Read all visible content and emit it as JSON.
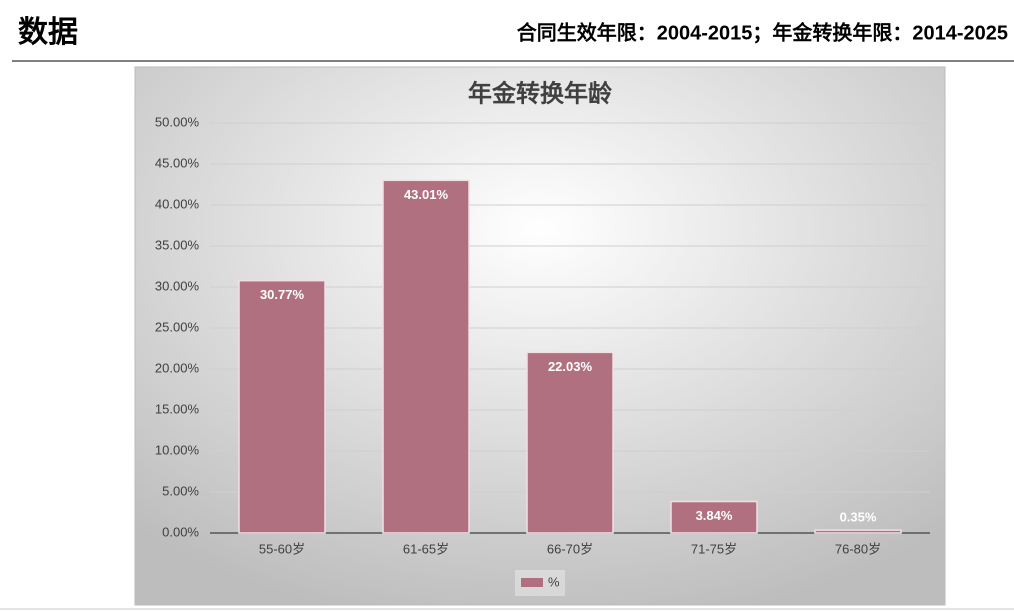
{
  "header": {
    "left": "数据",
    "right": "合同生效年限：2004-2015；年金转换年限：2014-2025"
  },
  "chart_data": {
    "type": "bar",
    "title": "年金转换年龄",
    "categories": [
      "55-60岁",
      "61-65岁",
      "66-70岁",
      "71-75岁",
      "76-80岁"
    ],
    "series": [
      {
        "name": "%",
        "color": "#b07080",
        "values": [
          30.77,
          43.01,
          22.03,
          3.84,
          0.35
        ],
        "value_labels": [
          "30.77%",
          "43.01%",
          "22.03%",
          "3.84%",
          "0.35%"
        ]
      }
    ],
    "ylim": [
      0,
      50
    ],
    "yticks": [
      {
        "value": 0,
        "label": "0.00%"
      },
      {
        "value": 5,
        "label": "5.00%"
      },
      {
        "value": 10,
        "label": "10.00%"
      },
      {
        "value": 15,
        "label": "15.00%"
      },
      {
        "value": 20,
        "label": "20.00%"
      },
      {
        "value": 25,
        "label": "25.00%"
      },
      {
        "value": 30,
        "label": "30.00%"
      },
      {
        "value": 35,
        "label": "35.00%"
      },
      {
        "value": 40,
        "label": "40.00%"
      },
      {
        "value": 45,
        "label": "45.00%"
      },
      {
        "value": 50,
        "label": "50.00%"
      }
    ],
    "grid": true,
    "legend": "bottom"
  }
}
